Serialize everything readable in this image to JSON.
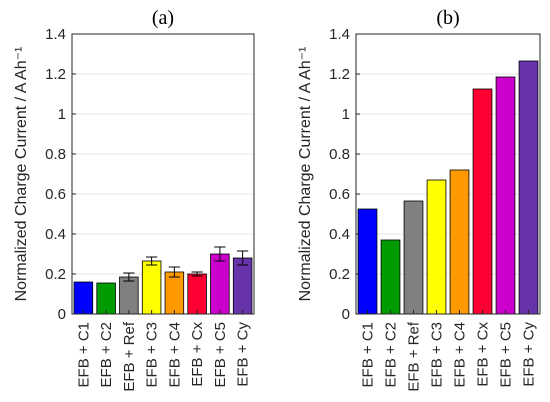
{
  "chart_data": [
    {
      "type": "bar",
      "panel": "(a)",
      "categories": [
        "EFB + C1",
        "EFB + C2",
        "EFB + Ref",
        "EFB + C3",
        "EFB + C4",
        "EFB + Cx",
        "EFB + C5",
        "EFB + Cy"
      ],
      "values": [
        0.16,
        0.155,
        0.185,
        0.265,
        0.21,
        0.2,
        0.3,
        0.28
      ],
      "errors": [
        0.0,
        0.0,
        0.02,
        0.02,
        0.025,
        0.01,
        0.035,
        0.035
      ],
      "colors": [
        "#0000ff",
        "#009b00",
        "#808080",
        "#ffff00",
        "#ff9900",
        "#ff0033",
        "#cc00cc",
        "#6633aa"
      ],
      "ylabel": "Normalized Charge Current / A Ah⁻¹",
      "ylim": [
        0,
        1.4
      ],
      "yticks": [
        "0",
        "0.2",
        "0.4",
        "0.6",
        "0.8",
        "1",
        "1.2",
        "1.4"
      ],
      "grid": true
    },
    {
      "type": "bar",
      "panel": "(b)",
      "categories": [
        "EFB + C1",
        "EFB + C2",
        "EFB + Ref",
        "EFB + C3",
        "EFB + C4",
        "EFB + Cx",
        "EFB + C5",
        "EFB + Cy"
      ],
      "values": [
        0.525,
        0.37,
        0.565,
        0.67,
        0.72,
        1.125,
        1.185,
        1.265
      ],
      "colors": [
        "#0000ff",
        "#009b00",
        "#808080",
        "#ffff00",
        "#ff9900",
        "#ff0033",
        "#cc00cc",
        "#6633aa"
      ],
      "ylabel": "Normalized Charge Current / A Ah⁻¹",
      "ylim": [
        0,
        1.4
      ],
      "yticks": [
        "0",
        "0.2",
        "0.4",
        "0.6",
        "0.8",
        "1",
        "1.2",
        "1.4"
      ],
      "grid": true
    }
  ]
}
